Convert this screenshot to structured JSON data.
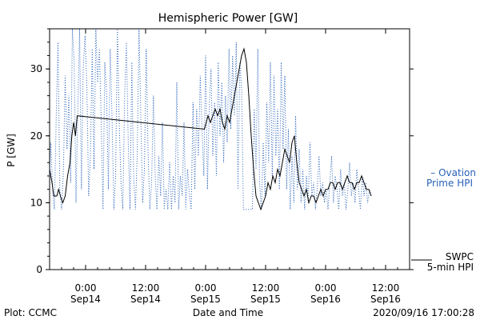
{
  "chart_data": {
    "type": "line",
    "title": "Hemispheric Power [GW]",
    "ylabel": "P [GW]",
    "xlabel": "Date and Time",
    "ylim": [
      0,
      36
    ],
    "yticks": [
      0,
      10,
      20,
      30
    ],
    "xlim_hours": [
      -6,
      54
    ],
    "xticks": [
      {
        "h": 0,
        "time": "0:00",
        "date": "Sep14"
      },
      {
        "h": 10,
        "time": "12:00",
        "date": "Sep14"
      },
      {
        "h": 20,
        "time": "0:00",
        "date": "Sep15"
      },
      {
        "h": 30,
        "time": "12:00",
        "date": "Sep15"
      },
      {
        "h": 40,
        "time": "0:00",
        "date": "Sep16"
      },
      {
        "h": 50,
        "time": "12:00",
        "date": "Sep16"
      }
    ],
    "colors": {
      "swpc": "#000000",
      "ovation": "#2a62b8"
    },
    "series": [
      {
        "name": "SWPC 5-min HPI",
        "style": "solid",
        "points": [
          [
            -6.0,
            15
          ],
          [
            -5.6,
            13
          ],
          [
            -5.3,
            11
          ],
          [
            -4.8,
            11
          ],
          [
            -4.5,
            12
          ],
          [
            -4.2,
            11
          ],
          [
            -3.8,
            10
          ],
          [
            -3.4,
            11
          ],
          [
            -3.0,
            14
          ],
          [
            -2.6,
            16
          ],
          [
            -2.3,
            20
          ],
          [
            -2.0,
            22
          ],
          [
            -1.7,
            20
          ],
          [
            -1.4,
            23
          ],
          [
            19.8,
            21
          ],
          [
            20.1,
            22
          ],
          [
            20.4,
            23
          ],
          [
            20.8,
            22
          ],
          [
            21.2,
            23
          ],
          [
            21.6,
            24
          ],
          [
            22.0,
            23
          ],
          [
            22.4,
            24
          ],
          [
            22.8,
            22
          ],
          [
            23.2,
            21
          ],
          [
            23.6,
            23
          ],
          [
            24.0,
            22
          ],
          [
            24.4,
            24
          ],
          [
            24.8,
            26
          ],
          [
            25.2,
            28
          ],
          [
            25.6,
            30
          ],
          [
            26.0,
            32
          ],
          [
            26.4,
            33
          ],
          [
            26.8,
            31
          ],
          [
            27.2,
            26
          ],
          [
            27.6,
            20
          ],
          [
            28.0,
            15
          ],
          [
            28.4,
            11
          ],
          [
            28.8,
            10
          ],
          [
            29.2,
            9
          ],
          [
            29.6,
            10
          ],
          [
            30.0,
            11
          ],
          [
            30.4,
            13
          ],
          [
            30.8,
            12
          ],
          [
            31.2,
            14
          ],
          [
            31.6,
            13
          ],
          [
            32.0,
            15
          ],
          [
            32.4,
            14
          ],
          [
            32.8,
            16
          ],
          [
            33.2,
            18
          ],
          [
            33.6,
            17
          ],
          [
            34.0,
            16
          ],
          [
            34.4,
            19
          ],
          [
            34.8,
            20
          ],
          [
            35.2,
            16
          ],
          [
            35.6,
            13
          ],
          [
            36.0,
            12
          ],
          [
            36.4,
            11
          ],
          [
            36.8,
            12
          ],
          [
            37.2,
            10
          ],
          [
            37.6,
            11
          ],
          [
            38.0,
            11
          ],
          [
            38.4,
            10
          ],
          [
            38.8,
            11
          ],
          [
            39.2,
            12
          ],
          [
            39.6,
            11
          ],
          [
            40.0,
            12
          ],
          [
            40.4,
            12
          ],
          [
            40.8,
            13
          ],
          [
            41.2,
            13
          ],
          [
            41.6,
            12
          ],
          [
            42.0,
            13
          ],
          [
            42.4,
            13
          ],
          [
            42.8,
            12
          ],
          [
            43.2,
            13
          ],
          [
            43.6,
            14
          ],
          [
            44.0,
            13
          ],
          [
            44.4,
            13
          ],
          [
            44.8,
            12
          ],
          [
            45.2,
            13
          ],
          [
            45.6,
            13
          ],
          [
            46.0,
            14
          ],
          [
            46.4,
            13
          ],
          [
            46.8,
            12
          ],
          [
            47.2,
            12
          ],
          [
            47.6,
            11
          ]
        ]
      },
      {
        "name": "Ovation Prime HPI",
        "style": "dotted",
        "points": [
          [
            -6.0,
            14
          ],
          [
            -5.8,
            19
          ],
          [
            -5.5,
            12
          ],
          [
            -5.2,
            9
          ],
          [
            -4.9,
            23
          ],
          [
            -4.6,
            34
          ],
          [
            -4.3,
            12
          ],
          [
            -4.0,
            9
          ],
          [
            -3.7,
            15
          ],
          [
            -3.4,
            29
          ],
          [
            -3.1,
            18
          ],
          [
            -2.8,
            26
          ],
          [
            -2.5,
            13
          ],
          [
            -2.2,
            36
          ],
          [
            -1.9,
            31
          ],
          [
            -1.6,
            10
          ],
          [
            -1.3,
            24
          ],
          [
            -1.0,
            36
          ],
          [
            -0.7,
            12
          ],
          [
            -0.4,
            30
          ],
          [
            -0.1,
            35
          ],
          [
            0.2,
            28
          ],
          [
            0.5,
            11
          ],
          [
            0.8,
            17
          ],
          [
            1.1,
            33
          ],
          [
            1.4,
            15
          ],
          [
            1.7,
            36
          ],
          [
            2.0,
            28
          ],
          [
            2.3,
            33
          ],
          [
            2.6,
            22
          ],
          [
            2.9,
            9
          ],
          [
            3.2,
            31
          ],
          [
            3.5,
            26
          ],
          [
            3.8,
            12
          ],
          [
            4.1,
            33
          ],
          [
            4.4,
            23
          ],
          [
            4.7,
            9
          ],
          [
            5.0,
            14
          ],
          [
            5.3,
            36
          ],
          [
            5.6,
            22
          ],
          [
            5.9,
            13
          ],
          [
            6.2,
            9
          ],
          [
            6.5,
            26
          ],
          [
            6.8,
            34
          ],
          [
            7.1,
            19
          ],
          [
            7.4,
            9
          ],
          [
            7.7,
            31
          ],
          [
            8.0,
            14
          ],
          [
            8.3,
            9
          ],
          [
            8.6,
            17
          ],
          [
            8.9,
            36
          ],
          [
            9.2,
            23
          ],
          [
            9.5,
            10
          ],
          [
            9.8,
            15
          ],
          [
            10.1,
            33
          ],
          [
            10.4,
            18
          ],
          [
            10.7,
            9
          ],
          [
            11.0,
            13
          ],
          [
            11.3,
            26
          ],
          [
            11.6,
            14
          ],
          [
            11.9,
            9
          ],
          [
            12.2,
            17
          ],
          [
            12.5,
            11
          ],
          [
            12.8,
            22
          ],
          [
            13.1,
            9
          ],
          [
            13.4,
            12
          ],
          [
            13.7,
            9
          ],
          [
            14.0,
            16
          ],
          [
            14.3,
            9
          ],
          [
            14.6,
            14
          ],
          [
            14.9,
            10
          ],
          [
            15.2,
            28
          ],
          [
            15.5,
            9
          ],
          [
            15.8,
            14
          ],
          [
            16.1,
            11
          ],
          [
            16.4,
            22
          ],
          [
            16.7,
            9
          ],
          [
            17.0,
            15
          ],
          [
            17.3,
            11
          ],
          [
            17.6,
            9
          ],
          [
            17.9,
            25
          ],
          [
            18.2,
            12
          ],
          [
            18.5,
            24
          ],
          [
            18.8,
            17
          ],
          [
            19.1,
            29
          ],
          [
            19.4,
            21
          ],
          [
            19.7,
            14
          ],
          [
            20.0,
            32
          ],
          [
            20.3,
            12
          ],
          [
            20.6,
            24
          ],
          [
            20.9,
            30
          ],
          [
            21.2,
            17
          ],
          [
            21.5,
            25
          ],
          [
            21.8,
            14
          ],
          [
            22.1,
            31
          ],
          [
            22.4,
            20
          ],
          [
            22.7,
            28
          ],
          [
            23.0,
            16
          ],
          [
            23.3,
            26
          ],
          [
            23.6,
            19
          ],
          [
            23.9,
            33
          ],
          [
            24.2,
            21
          ],
          [
            24.5,
            32
          ],
          [
            24.8,
            23
          ],
          [
            25.1,
            34
          ],
          [
            25.4,
            12
          ],
          [
            25.7,
            31
          ],
          [
            26.0,
            27
          ],
          [
            26.3,
            9
          ],
          [
            26.6,
            9
          ],
          [
            26.9,
            9
          ],
          [
            27.2,
            9
          ],
          [
            27.5,
            9
          ],
          [
            27.8,
            9
          ],
          [
            28.1,
            24
          ],
          [
            28.4,
            15
          ],
          [
            28.7,
            33
          ],
          [
            29.0,
            13
          ],
          [
            29.3,
            9
          ],
          [
            29.6,
            19
          ],
          [
            29.9,
            11
          ],
          [
            30.2,
            25
          ],
          [
            30.5,
            16
          ],
          [
            30.8,
            31
          ],
          [
            31.1,
            14
          ],
          [
            31.4,
            29
          ],
          [
            31.7,
            17
          ],
          [
            32.0,
            24
          ],
          [
            32.3,
            12
          ],
          [
            32.6,
            31
          ],
          [
            32.9,
            18
          ],
          [
            33.2,
            29
          ],
          [
            33.5,
            12
          ],
          [
            33.8,
            21
          ],
          [
            34.1,
            9
          ],
          [
            34.4,
            17
          ],
          [
            34.7,
            10
          ],
          [
            35.0,
            23
          ],
          [
            35.3,
            12
          ],
          [
            35.6,
            18
          ],
          [
            35.9,
            10
          ],
          [
            36.2,
            15
          ],
          [
            36.5,
            9
          ],
          [
            36.8,
            14
          ],
          [
            37.1,
            10
          ],
          [
            37.4,
            19
          ],
          [
            37.7,
            11
          ],
          [
            38.0,
            13
          ],
          [
            38.3,
            9
          ],
          [
            38.6,
            12
          ],
          [
            38.9,
            17
          ],
          [
            39.2,
            11
          ],
          [
            39.5,
            13
          ],
          [
            39.8,
            10
          ],
          [
            40.1,
            12
          ],
          [
            40.4,
            9
          ],
          [
            40.7,
            13
          ],
          [
            41.0,
            17
          ],
          [
            41.3,
            10
          ],
          [
            41.6,
            14
          ],
          [
            41.9,
            12
          ],
          [
            42.2,
            9
          ],
          [
            42.5,
            15
          ],
          [
            42.8,
            11
          ],
          [
            43.1,
            13
          ],
          [
            43.4,
            9
          ],
          [
            43.7,
            12
          ],
          [
            44.0,
            16
          ],
          [
            44.3,
            11
          ],
          [
            44.6,
            13
          ],
          [
            44.9,
            10
          ],
          [
            45.2,
            15
          ],
          [
            45.5,
            12
          ],
          [
            45.8,
            9
          ],
          [
            46.1,
            14
          ],
          [
            46.4,
            11
          ],
          [
            46.7,
            13
          ],
          [
            47.0,
            10
          ],
          [
            47.3,
            12
          ],
          [
            47.6,
            11
          ]
        ]
      }
    ],
    "legend": [
      {
        "text": "– Ovation",
        "color": "#2a62b8"
      },
      {
        "text": "Prime HPI",
        "color": "#2a62b8"
      },
      {
        "text": "SWPC",
        "color": "#000000"
      },
      {
        "text": "5-min HPI",
        "color": "#000000"
      }
    ]
  },
  "footer": {
    "left": "Plot: CCMC",
    "right": "2020/09/16 17:00:28"
  }
}
